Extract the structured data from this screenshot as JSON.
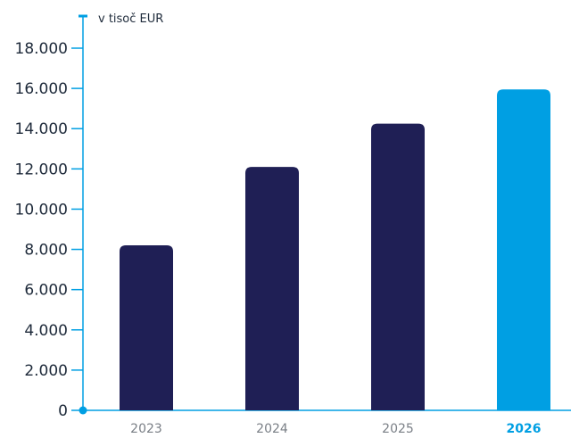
{
  "chart_data": {
    "type": "bar",
    "title": "",
    "xlabel": "",
    "ylabel": "v tisoč EUR",
    "categories": [
      "2023",
      "2024",
      "2025",
      "2026"
    ],
    "values": [
      8200,
      12100,
      14250,
      15950
    ],
    "highlight_category": "2026",
    "ylim": [
      0,
      18000
    ],
    "yticks": [
      0,
      2000,
      4000,
      6000,
      8000,
      10000,
      12000,
      14000,
      16000,
      18000
    ],
    "ytick_labels": [
      "0",
      "2.000",
      "4.000",
      "6.000",
      "8.000",
      "10.000",
      "12.000",
      "14.000",
      "16.000",
      "18.000"
    ],
    "grid": false,
    "colors": {
      "bar": "#1f1f55",
      "highlight_bar": "#009fe3",
      "axis": "#009fe3",
      "tick_text": "#1e2a3a",
      "category_text": "#7a7f86"
    }
  }
}
